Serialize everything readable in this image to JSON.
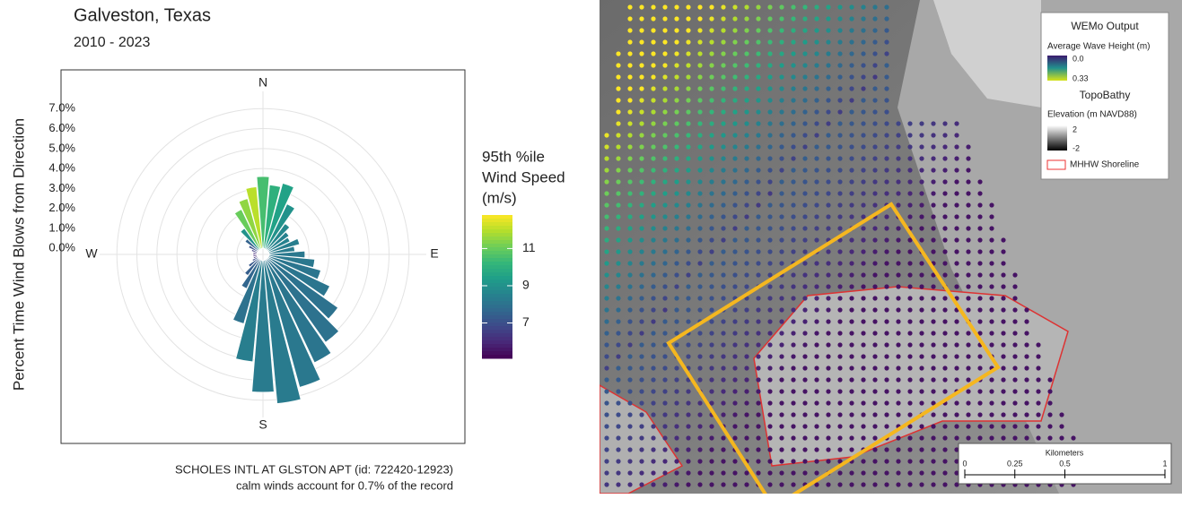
{
  "chart_data": {
    "type": "wind-rose",
    "title": "Galveston, Texas",
    "subtitle": "2010 - 2023",
    "y_label": "Percent Time Wind Blows from Direction",
    "x": [
      0,
      10,
      20,
      30,
      40,
      50,
      60,
      70,
      80,
      90,
      100,
      110,
      120,
      130,
      140,
      150,
      160,
      170,
      180,
      190,
      200,
      210,
      220,
      230,
      240,
      250,
      260,
      270,
      280,
      290,
      300,
      310,
      320,
      330,
      340,
      350
    ],
    "values": [
      3.6,
      3.2,
      3.4,
      2.5,
      1.6,
      1.3,
      1.2,
      1.6,
      1.3,
      1.8,
      2.3,
      2.7,
      3.4,
      4.3,
      5.1,
      5.7,
      6.6,
      7.2,
      6.6,
      5.1,
      3.3,
      1.6,
      1.0,
      0.6,
      0.3,
      0.2,
      0.2,
      0.2,
      0.2,
      0.3,
      0.5,
      0.8,
      1.3,
      2.2,
      2.6,
      3.1
    ],
    "speeds": [
      10.5,
      10.0,
      9.5,
      9.0,
      8.7,
      8.5,
      8.5,
      8.4,
      8.3,
      8.2,
      8.2,
      8.1,
      8.1,
      8.0,
      8.0,
      8.1,
      8.2,
      8.3,
      8.3,
      8.4,
      8.0,
      7.6,
      7.4,
      7.2,
      6.8,
      6.2,
      6.0,
      6.0,
      6.2,
      6.5,
      7.0,
      7.5,
      9.0,
      11.0,
      11.5,
      12.0
    ],
    "xticks": [
      {
        "value": 0,
        "label": "N"
      },
      {
        "value": 90,
        "label": "E"
      },
      {
        "value": 180,
        "label": "S"
      },
      {
        "value": 270,
        "label": "W"
      }
    ],
    "ylim": [
      -0.3,
      8.4
    ],
    "yticks": [
      {
        "value": 0,
        "label": "0.0%"
      },
      {
        "value": 1,
        "label": "1.0%"
      },
      {
        "value": 2,
        "label": "2.0%"
      },
      {
        "value": 3,
        "label": "3.0%"
      },
      {
        "value": 4,
        "label": "4.0%"
      },
      {
        "value": 5,
        "label": "5.0%"
      },
      {
        "value": 6,
        "label": "6.0%"
      },
      {
        "value": 7,
        "label": "7.0%"
      }
    ],
    "grid": true,
    "colorbar": {
      "title": [
        "95th %ile",
        "Wind Speed",
        "(m/s)"
      ],
      "clim": [
        5.1,
        12.8
      ],
      "ticks": [
        7,
        9,
        11
      ],
      "palette": "viridis"
    },
    "caption": [
      "SCHOLES INTL AT GLSTON APT (id: 722420-12923)",
      "calm winds account for 0.7% of the record"
    ]
  },
  "map": {
    "legend": {
      "title": "WEMo Output",
      "wave_label": "Average Wave Height (m)",
      "wave_ticks": [
        "0.0",
        "0.33"
      ],
      "topo_title": "TopoBathy",
      "elev_label": "Elevation (m NAVD88)",
      "elev_ticks": [
        "2",
        "-2"
      ],
      "shoreline": "MHHW Shoreline"
    },
    "scale_bar": {
      "title": "Kilometers",
      "ticks": [
        0,
        0.25,
        0.5,
        1
      ]
    }
  }
}
